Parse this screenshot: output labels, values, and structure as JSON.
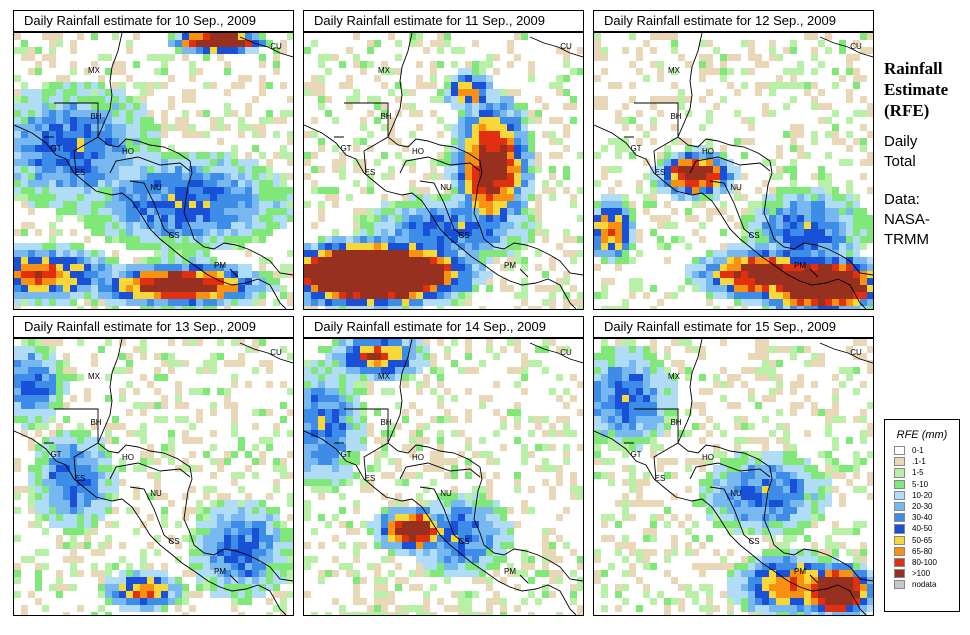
{
  "side": {
    "title": [
      "Rainfall",
      "Estimate",
      "(RFE)"
    ],
    "period": [
      "Daily",
      "Total"
    ],
    "source": [
      "Data:",
      "NASA-",
      "TRMM"
    ]
  },
  "legend": {
    "title": "RFE (mm)",
    "items": [
      {
        "label": "0-1",
        "color": "#ffffff"
      },
      {
        "label": ".1-1",
        "color": "#e8d8b8"
      },
      {
        "label": "1-5",
        "color": "#b8f0a8"
      },
      {
        "label": "5-10",
        "color": "#80e878"
      },
      {
        "label": "10-20",
        "color": "#b0dcf8"
      },
      {
        "label": "20-30",
        "color": "#78b8f0"
      },
      {
        "label": "30-40",
        "color": "#3c8ce8"
      },
      {
        "label": "40-50",
        "color": "#1850d8"
      },
      {
        "label": "50-65",
        "color": "#f8d838"
      },
      {
        "label": "65-80",
        "color": "#f89010"
      },
      {
        "label": "80-100",
        "color": "#e03010"
      },
      {
        "label": ">100",
        "color": "#983020"
      },
      {
        "label": "nodata",
        "color": "#c8c8c8"
      }
    ]
  },
  "country_labels": [
    "MX",
    "CU",
    "BH",
    "GT",
    "HO",
    "ES",
    "NU",
    "CS",
    "PM"
  ],
  "panels": [
    {
      "title": "Daily Rainfall estimate for  10 Sep., 2009",
      "hot": [
        [
          0.72,
          0.02,
          0.12,
          0.03,
          4
        ],
        [
          0.58,
          0.9,
          0.22,
          0.06,
          3
        ],
        [
          0.1,
          0.86,
          0.18,
          0.07,
          2
        ],
        [
          0.6,
          0.6,
          0.25,
          0.12,
          1
        ],
        [
          0.2,
          0.4,
          0.2,
          0.15,
          1
        ]
      ]
    },
    {
      "title": "Daily Rainfall estimate for  11 Sep., 2009",
      "hot": [
        [
          0.24,
          0.86,
          0.26,
          0.09,
          5
        ],
        [
          0.1,
          0.84,
          0.1,
          0.07,
          3
        ],
        [
          0.66,
          0.47,
          0.1,
          0.18,
          3
        ],
        [
          0.58,
          0.2,
          0.06,
          0.05,
          2
        ],
        [
          0.5,
          0.7,
          0.2,
          0.08,
          1
        ]
      ]
    },
    {
      "title": "Daily Rainfall estimate for  12 Sep., 2009",
      "hot": [
        [
          0.8,
          0.9,
          0.18,
          0.08,
          4
        ],
        [
          0.6,
          0.86,
          0.18,
          0.07,
          3
        ],
        [
          0.35,
          0.5,
          0.1,
          0.06,
          3
        ],
        [
          0.05,
          0.7,
          0.06,
          0.08,
          2
        ],
        [
          0.75,
          0.7,
          0.15,
          0.1,
          1
        ]
      ]
    },
    {
      "title": "Daily Rainfall estimate for  13 Sep., 2009",
      "hot": [
        [
          0.45,
          0.9,
          0.1,
          0.05,
          2
        ],
        [
          0.05,
          0.15,
          0.08,
          0.1,
          1
        ],
        [
          0.8,
          0.75,
          0.12,
          0.12,
          1
        ],
        [
          0.2,
          0.5,
          0.1,
          0.12,
          1
        ]
      ]
    },
    {
      "title": "Daily Rainfall estimate for  14 Sep., 2009",
      "hot": [
        [
          0.38,
          0.68,
          0.1,
          0.06,
          3
        ],
        [
          0.25,
          0.05,
          0.12,
          0.06,
          2
        ],
        [
          0.05,
          0.3,
          0.1,
          0.15,
          1
        ],
        [
          0.55,
          0.7,
          0.12,
          0.1,
          1
        ]
      ]
    },
    {
      "title": "Daily Rainfall estimate for  15 Sep., 2009",
      "hot": [
        [
          0.86,
          0.9,
          0.1,
          0.07,
          4
        ],
        [
          0.7,
          0.88,
          0.15,
          0.08,
          2
        ],
        [
          0.6,
          0.55,
          0.15,
          0.1,
          1
        ],
        [
          0.1,
          0.2,
          0.12,
          0.12,
          1
        ]
      ]
    }
  ]
}
